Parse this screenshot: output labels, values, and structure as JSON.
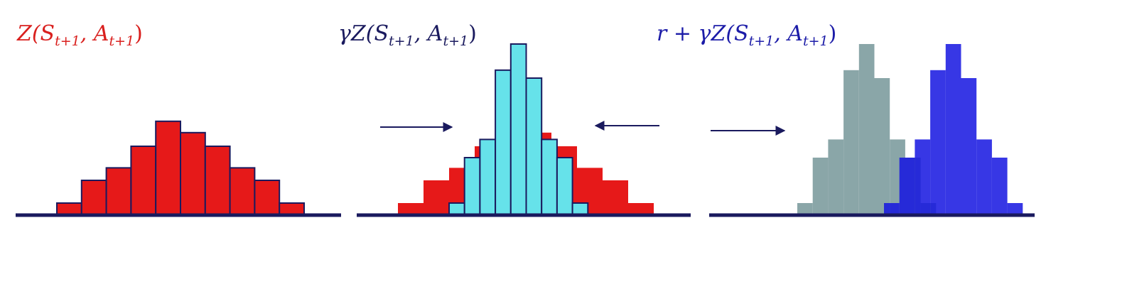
{
  "panels": [
    {
      "id": "original",
      "title": {
        "main": "Z(S",
        "sub1": "t+1",
        "mid": ", A",
        "sub2": "t+1",
        "end": ")"
      },
      "title_color": "#d9201e",
      "bars": [
        1,
        3,
        4.1,
        6,
        8.2,
        7.2,
        6,
        4.1,
        3,
        1
      ],
      "bar_color": "#e61919"
    },
    {
      "id": "discounted",
      "title": {
        "main": "γZ(S",
        "sub1": "t+1",
        "mid": ", A",
        "sub2": "t+1",
        "end": ")"
      },
      "title_color": "#1a1a5e",
      "back_bars": [
        1,
        3,
        4.1,
        6,
        8.2,
        7.2,
        6,
        4.1,
        3,
        1
      ],
      "back_color": "#e61919",
      "bars": [
        1,
        5,
        6.6,
        12.7,
        15,
        12,
        6.6,
        5,
        1
      ],
      "bar_color": "#66e2ea",
      "arrows": [
        "inward-left",
        "inward-right"
      ]
    },
    {
      "id": "shifted",
      "title": {
        "main": "r + γZ(S",
        "sub1": "t+1",
        "mid": ", A",
        "sub2": "t+1",
        "end": ")"
      },
      "title_color": "#1c1ca8",
      "ghost_bars": [
        1,
        5,
        6.6,
        12.7,
        15,
        12,
        6.6,
        5,
        1
      ],
      "ghost_color": "#8aa6a8",
      "bars": [
        1,
        5,
        6.6,
        12.7,
        15,
        12,
        6.6,
        5,
        1
      ],
      "bar_color": "#1414e0",
      "arrows": [
        "shift-right"
      ]
    }
  ],
  "colors": {
    "axis": "#1a1a5e",
    "arrow": "#1a1a5e",
    "outline": "#1a1a5e"
  }
}
